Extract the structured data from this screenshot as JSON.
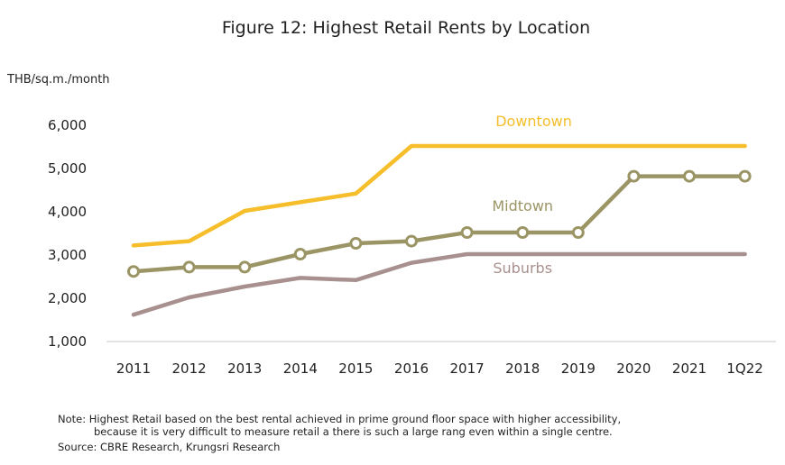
{
  "chart_data": {
    "type": "line",
    "title": "Figure 12: Highest Retail Rents by Location",
    "ylabel": "THB/sq.m./month",
    "xlabel": "",
    "categories": [
      "2011",
      "2012",
      "2013",
      "2014",
      "2015",
      "2016",
      "2017",
      "2018",
      "2019",
      "2020",
      "2021",
      "1Q22"
    ],
    "ylim": [
      1000,
      6000
    ],
    "yticks": [
      "6,000",
      "5,000",
      "4,000",
      "3,000",
      "2,000",
      "1,000"
    ],
    "ytick_values": [
      6000,
      5000,
      4000,
      3000,
      2000,
      1000
    ],
    "grid": false,
    "series": [
      {
        "name": "Downtown",
        "color": "#F5BE2A",
        "markers": false,
        "values": [
          3200,
          3300,
          4000,
          4200,
          4400,
          5500,
          5500,
          5500,
          5500,
          5500,
          5500,
          5500
        ]
      },
      {
        "name": "Midtown",
        "color": "#9B9565",
        "markers": true,
        "values": [
          2600,
          2700,
          2700,
          3000,
          3250,
          3300,
          3500,
          3500,
          3500,
          4800,
          4800,
          4800
        ]
      },
      {
        "name": "Suburbs",
        "color": "#A8908E",
        "markers": false,
        "values": [
          1600,
          2000,
          2250,
          2450,
          2400,
          2800,
          3000,
          3000,
          3000,
          3000,
          3000,
          3000
        ]
      }
    ]
  },
  "notes": {
    "note_line1": "Note: Highest Retail based on the best rental achieved in prime ground floor space with higher accessibility,",
    "note_line2": "because it is very difficult to measure retail a there is such a large rang even within a single centre.",
    "source": "Source: CBRE Research, Krungsri Research"
  }
}
